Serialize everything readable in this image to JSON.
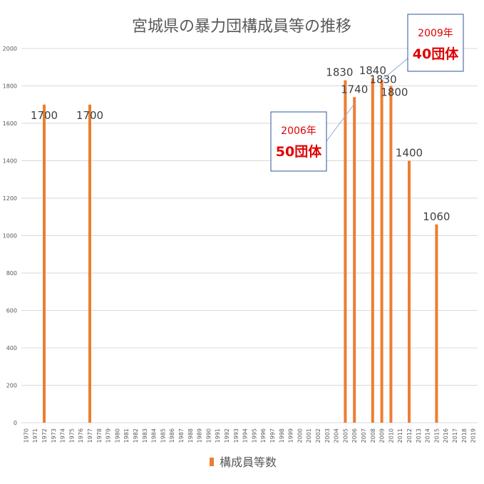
{
  "chart_data": {
    "type": "bar",
    "title": "宮城県の暴力団構成員等の推移",
    "xlabel": "",
    "ylabel": "",
    "ylim": [
      0,
      2000
    ],
    "yticks": [
      0,
      200,
      400,
      600,
      800,
      1000,
      1200,
      1400,
      1600,
      1800,
      2000
    ],
    "grid": true,
    "legend_position": "bottom",
    "categories": [
      "1970",
      "1971",
      "1972",
      "1973",
      "1974",
      "1975",
      "1976",
      "1977",
      "1978",
      "1979",
      "1980",
      "1981",
      "1982",
      "1983",
      "1984",
      "1985",
      "1986",
      "1987",
      "1988",
      "1989",
      "1990",
      "1991",
      "1992",
      "1993",
      "1994",
      "1995",
      "1996",
      "1997",
      "1998",
      "1999",
      "2000",
      "2001",
      "2002",
      "2003",
      "2004",
      "2005",
      "2006",
      "2007",
      "2008",
      "2009",
      "2010",
      "2011",
      "2012",
      "2013",
      "2014",
      "2015",
      "2016",
      "2017",
      "2018",
      "2019"
    ],
    "series": [
      {
        "name": "構成員等数",
        "color": "#ed7d31",
        "points": [
          {
            "x": "1972",
            "y": 1700,
            "label": "1700"
          },
          {
            "x": "1977",
            "y": 1700,
            "label": "1700"
          },
          {
            "x": "2005",
            "y": 1830,
            "label": "1830"
          },
          {
            "x": "2006",
            "y": 1740,
            "label": "1740"
          },
          {
            "x": "2008",
            "y": 1840,
            "label": "1840"
          },
          {
            "x": "2009",
            "y": 1830,
            "label": "1830"
          },
          {
            "x": "2010",
            "y": 1800,
            "label": "1800"
          },
          {
            "x": "2012",
            "y": 1400,
            "label": "1400"
          },
          {
            "x": "2015",
            "y": 1060,
            "label": "1060"
          }
        ]
      }
    ],
    "annotations": [
      {
        "year_text": "2006年",
        "count_text": "50団体",
        "target": "2006"
      },
      {
        "year_text": "2009年",
        "count_text": "40団体",
        "target": "2009"
      }
    ],
    "colors": {
      "grid": "#d9d9d9",
      "axis_text": "#595959",
      "annotation_text": "#e00000",
      "annotation_border": "#2f5597"
    }
  }
}
